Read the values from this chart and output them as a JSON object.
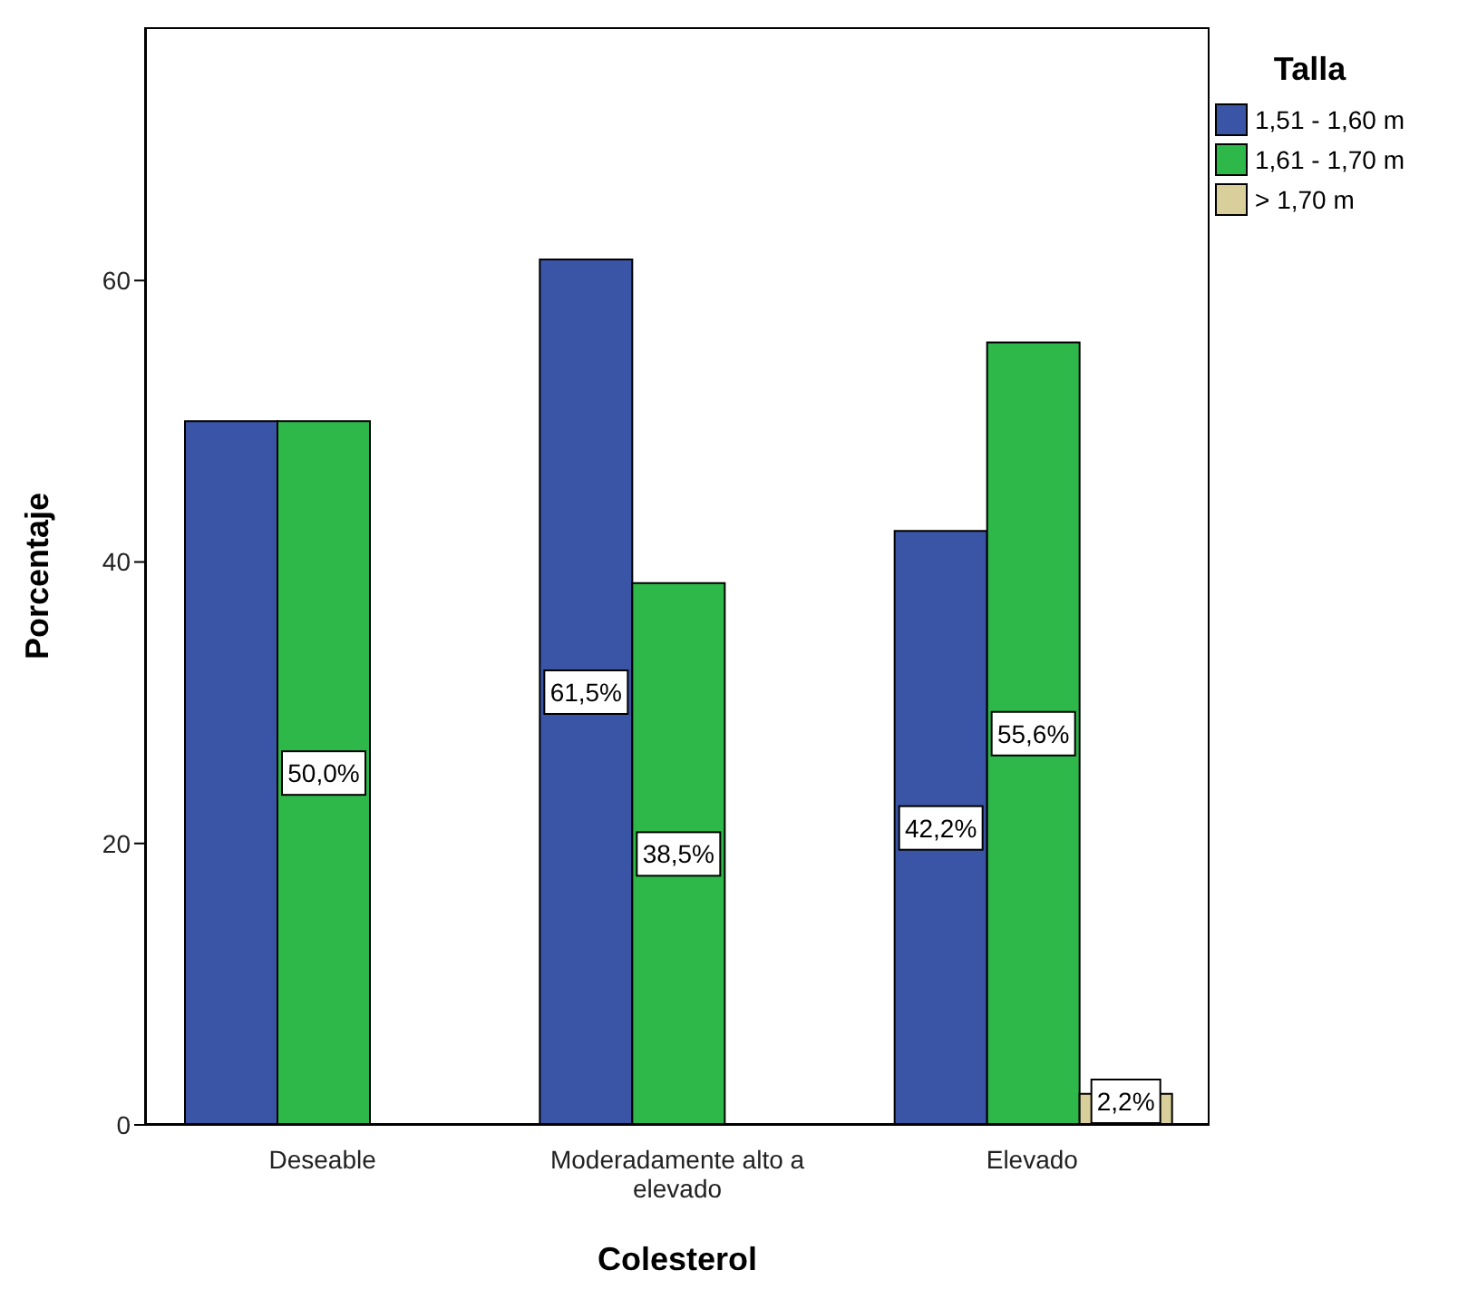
{
  "chart_data": {
    "type": "bar",
    "xlabel": "Colesterol",
    "ylabel": "Porcentaje",
    "legend_title": "Talla",
    "legend": "top right",
    "grid": false,
    "categories": [
      "Deseable",
      "Moderadamente alto a elevado",
      "Elevado"
    ],
    "ylim": [
      0,
      78
    ],
    "yticks": [
      0,
      20,
      40,
      60
    ],
    "series": [
      {
        "name": "1,51 - 1,60 m",
        "color": "#3b55a6",
        "values": [
          50.0,
          61.5,
          42.2
        ],
        "value_labels": [
          null,
          "61,5%",
          "42,2%"
        ]
      },
      {
        "name": "1,61 - 1,70 m",
        "color": "#2fb84a",
        "values": [
          50.0,
          38.5,
          55.6
        ],
        "value_labels": [
          "50,0%",
          "38,5%",
          "55,6%"
        ]
      },
      {
        "name": "> 1,70 m",
        "color": "#d8cf9a",
        "values": [
          null,
          null,
          2.2
        ],
        "value_labels": [
          null,
          null,
          "2,2%"
        ]
      }
    ]
  }
}
